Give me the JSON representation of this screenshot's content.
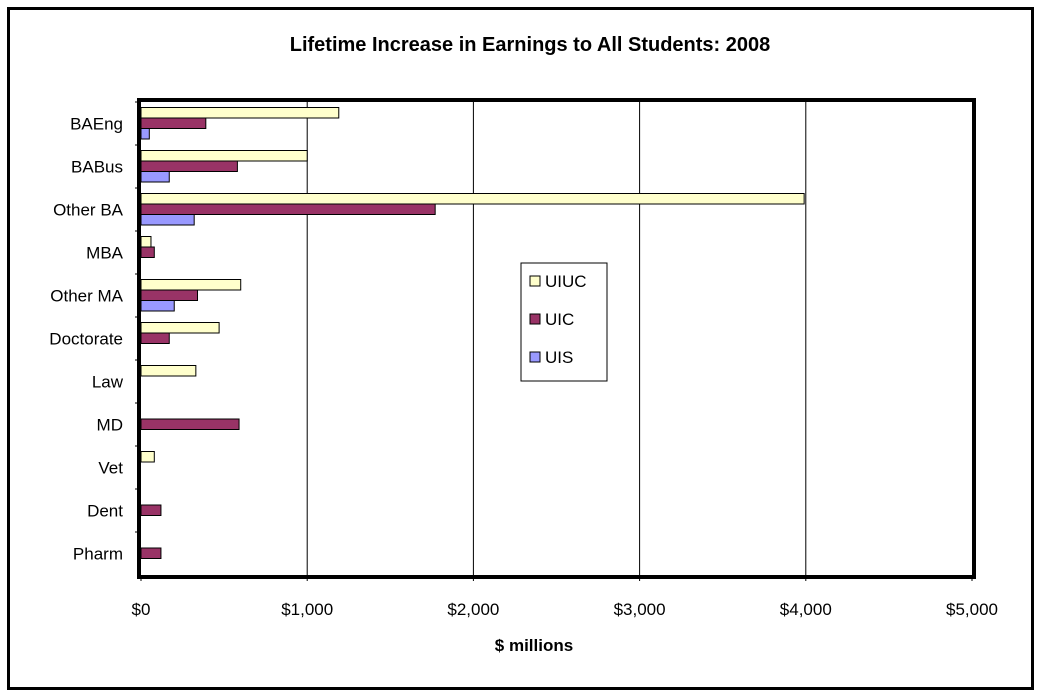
{
  "chart_data": {
    "type": "bar",
    "orientation": "horizontal",
    "title": "Lifetime Increase in Earnings to All Students: 2008",
    "xlabel": "$ millions",
    "ylabel": "",
    "xlim": [
      0,
      5000
    ],
    "x_ticks": [
      0,
      1000,
      2000,
      3000,
      4000,
      5000
    ],
    "x_tick_labels": [
      "$0",
      "$1,000",
      "$2,000",
      "$3,000",
      "$4,000",
      "$5,000"
    ],
    "grid": "vertical major gridlines",
    "legend_position": "center-right inside plot",
    "categories": [
      "BAEng",
      "BABus",
      "Other BA",
      "MBA",
      "Other MA",
      "Doctorate",
      "Law",
      "MD",
      "Vet",
      "Dent",
      "Pharm"
    ],
    "series": [
      {
        "name": "UIUC",
        "color": "#FFFFCC",
        "values": [
          1190,
          1000,
          3990,
          60,
          600,
          470,
          330,
          0,
          80,
          0,
          0
        ]
      },
      {
        "name": "UIC",
        "color": "#993366",
        "values": [
          390,
          580,
          1770,
          80,
          340,
          170,
          0,
          590,
          0,
          120,
          120
        ]
      },
      {
        "name": "UIS",
        "color": "#9999FF",
        "values": [
          50,
          170,
          320,
          0,
          200,
          0,
          0,
          0,
          0,
          0,
          0
        ]
      }
    ]
  }
}
